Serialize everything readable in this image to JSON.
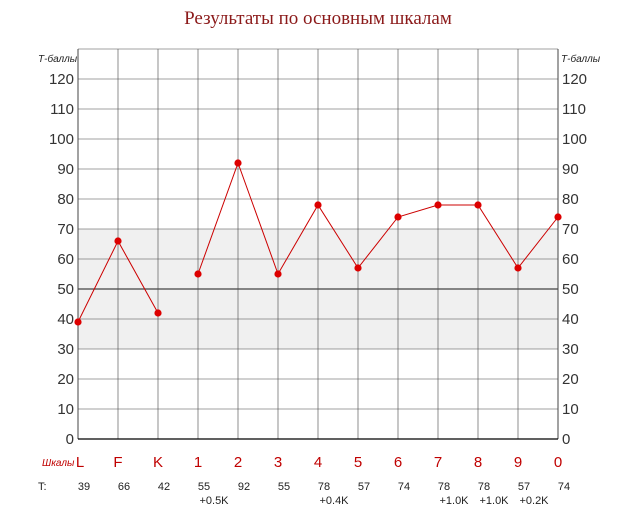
{
  "chart_data": {
    "type": "line",
    "title": "Результаты по основным шкалам",
    "y_unit_label": "Т-баллы",
    "ylim": [
      0,
      130
    ],
    "y_ticks": [
      0,
      10,
      20,
      30,
      40,
      50,
      60,
      70,
      80,
      90,
      100,
      110,
      120
    ],
    "normal_band": [
      30,
      70
    ],
    "reference_line": 50,
    "grid": true,
    "categories_caption": "Шкалы",
    "categories": [
      "L",
      "F",
      "K",
      "1",
      "2",
      "3",
      "4",
      "5",
      "6",
      "7",
      "8",
      "9",
      "0"
    ],
    "line_segments": [
      [
        0,
        2
      ],
      [
        3,
        12
      ]
    ],
    "values": [
      39,
      66,
      42,
      55,
      92,
      55,
      78,
      57,
      74,
      78,
      78,
      57,
      74
    ],
    "t_label": "T:",
    "t_values": [
      "39",
      "66",
      "42",
      "55",
      "92",
      "55",
      "78",
      "57",
      "74",
      "78",
      "78",
      "57",
      "74"
    ],
    "k_corrections": [
      "",
      "",
      "",
      "+0.5K",
      "",
      "",
      "+0.4K",
      "",
      "",
      "+1.0K",
      "+1.0K",
      "+0.2K",
      ""
    ],
    "colors": {
      "line": "#cc0000",
      "point": "#dd0000",
      "band": "#f0f0f0",
      "grid": "#444444",
      "title": "#8b1a1a",
      "scale_labels": "#c00000"
    }
  }
}
